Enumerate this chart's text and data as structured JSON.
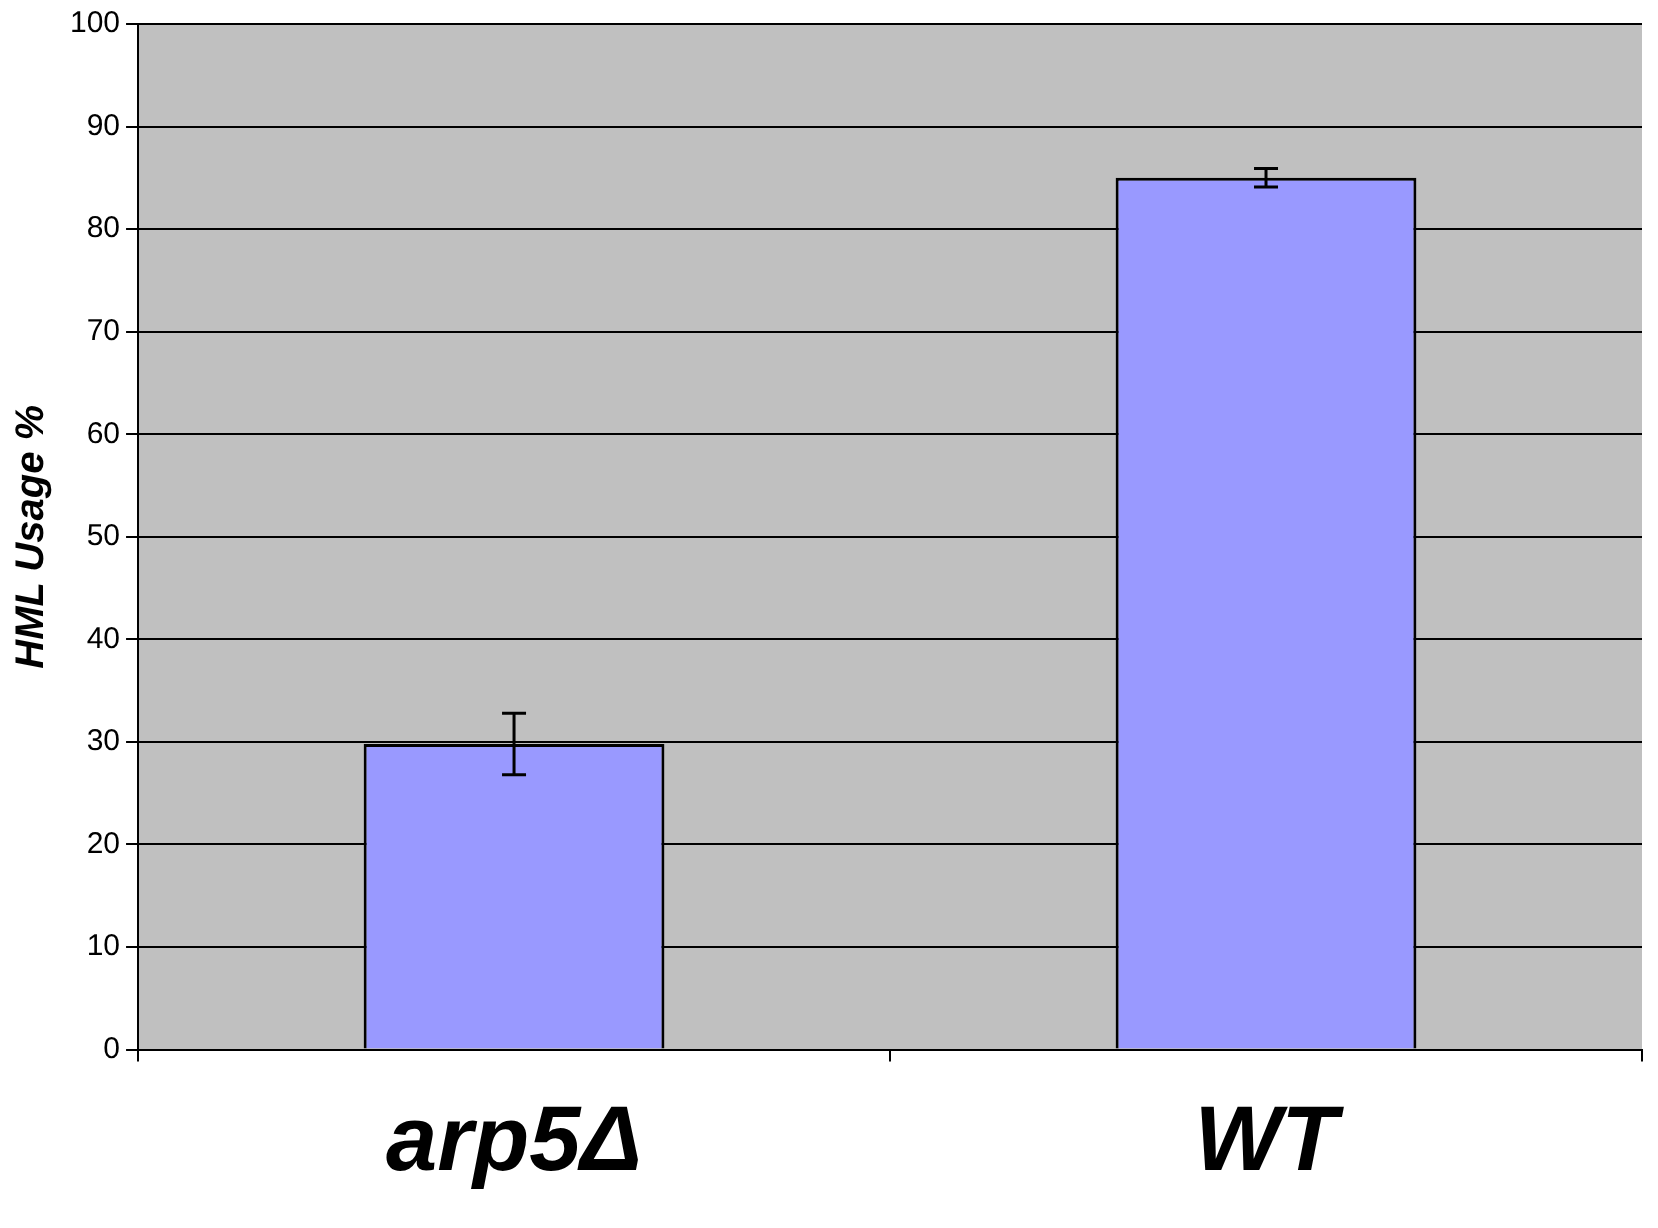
{
  "chart_data": {
    "type": "bar",
    "ylabel": "HML Usage %",
    "categories": [
      "arp5Δ",
      "WT"
    ],
    "values": [
      29.8,
      85.0
    ],
    "errors": [
      3.0,
      0.9
    ],
    "color": "#9999ff",
    "ylim": [
      0,
      100
    ],
    "yticks": [
      0,
      10,
      20,
      30,
      40,
      50,
      60,
      70,
      80,
      90,
      100
    ],
    "grid": "y",
    "legend": false
  }
}
